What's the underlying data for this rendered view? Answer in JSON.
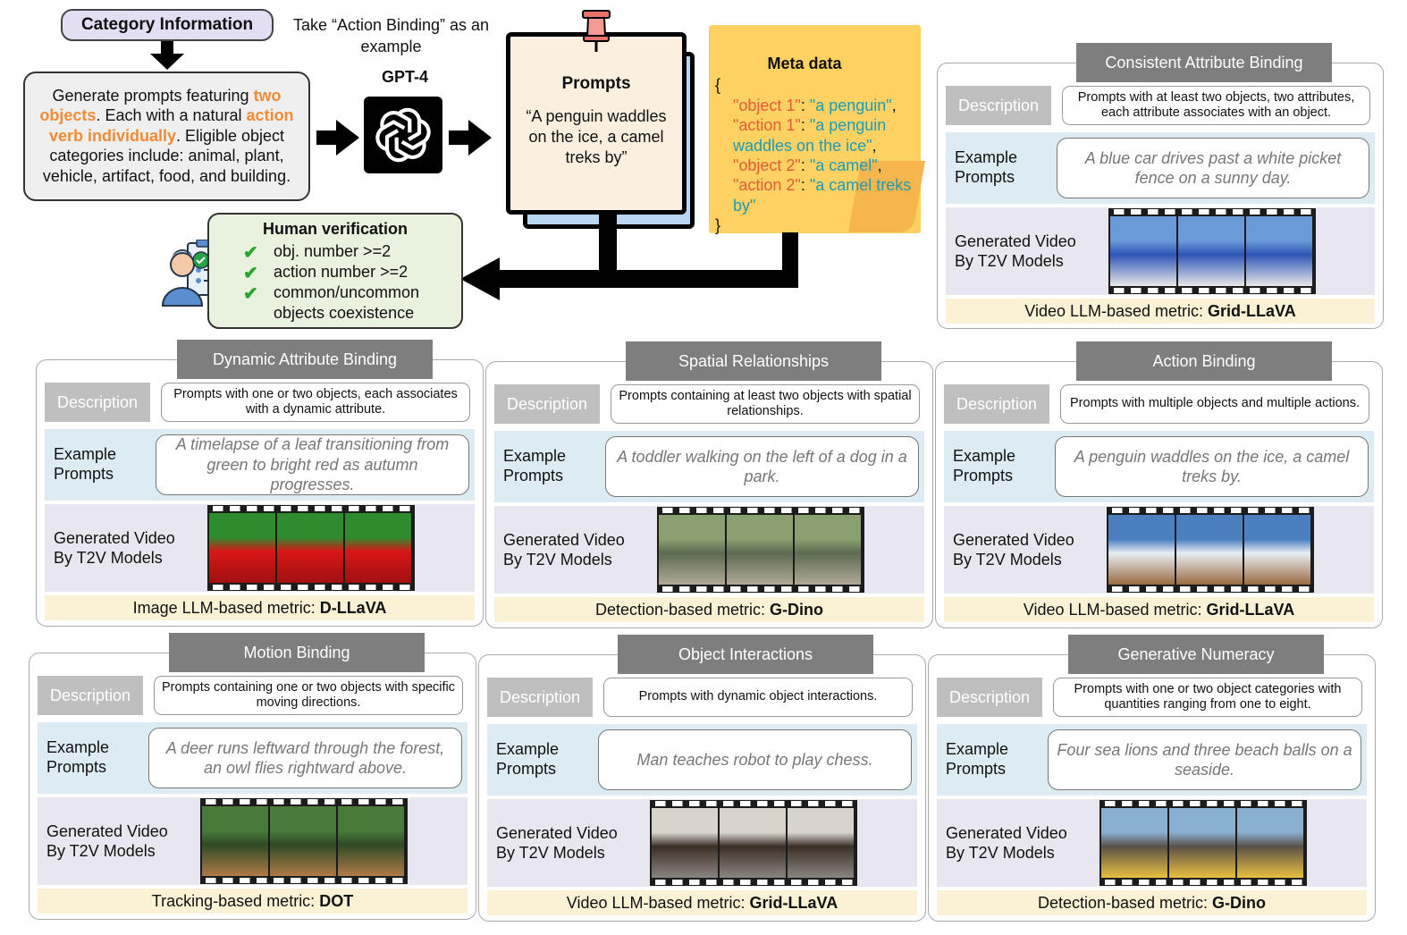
{
  "top": {
    "category_title": "Category Information",
    "take_example": "Take “Action Binding” as an example",
    "generate": {
      "t1": "Generate prompts featuring ",
      "h1": "two objects",
      "t2": ". Each with a natural ",
      "h2": "action verb individually",
      "t3": ". Eligible object categories include: animal, plant, vehicle, artifact, food, and building."
    },
    "gpt_label": "GPT-4",
    "prompts_title": "Prompts",
    "prompts_text": "“A penguin waddles on the ice, a camel treks by”",
    "meta_title": "Meta data",
    "meta": {
      "open": "{",
      "close": "}",
      "k1": "\"object 1\"",
      "v1": "\"a penguin\"",
      "k2": "\"action 1\"",
      "v2": "\"a penguin waddles on the ice\"",
      "k3": "\"object 2\"",
      "v3": "\"a camel\"",
      "k4": "\"action 2\"",
      "v4": "\"a camel treks by\""
    },
    "human_title": "Human verification",
    "human_items": [
      "obj. number >=2",
      "action number >=2",
      "common/uncommon objects coexistence"
    ]
  },
  "labels": {
    "description": "Description",
    "example": "Example Prompts",
    "generated": "Generated Video By T2V Models"
  },
  "panels": [
    {
      "title": "Consistent Attribute Binding",
      "desc": "Prompts with at least two objects, two attributes, each attribute associates with an object.",
      "example": "A blue car drives past a white picket fence on a sunny day.",
      "metric_prefix": "Video LLM-based metric: ",
      "metric_name": "Grid-LLaVA",
      "video_colors": [
        "#6a9ad8",
        "#2f55b8",
        "#e8e8e8"
      ]
    },
    {
      "title": "Dynamic Attribute Binding",
      "desc": "Prompts with one or two objects, each associates with a dynamic attribute.",
      "example": "A timelapse of a leaf transitioning from green to bright red as autumn progresses.",
      "metric_prefix": "Image LLM-based metric: ",
      "metric_name": "D-LLaVA",
      "video_colors": [
        "#2e8b2e",
        "#d81616",
        "#a01010"
      ]
    },
    {
      "title": "Spatial Relationships",
      "desc": "Prompts containing at least two objects with spatial relationships.",
      "example": "A toddler walking on the left of a dog in a park.",
      "metric_prefix": "Detection-based metric: ",
      "metric_name": "G-Dino",
      "video_colors": [
        "#8aa070",
        "#5c6a50",
        "#b0a898"
      ]
    },
    {
      "title": "Action Binding",
      "desc": "Prompts with multiple objects and multiple actions.",
      "example": "A penguin waddles on the ice, a camel treks by.",
      "metric_prefix": "Video LLM-based metric: ",
      "metric_name": "Grid-LLaVA",
      "video_colors": [
        "#4a7fc0",
        "#e8eef4",
        "#9a6a40"
      ]
    },
    {
      "title": "Motion Binding",
      "desc": "Prompts containing one or two objects with specific moving directions.",
      "example": "A deer runs leftward through the forest, an owl flies rightward above.",
      "metric_prefix": "Tracking-based metric: ",
      "metric_name": "DOT",
      "video_colors": [
        "#4a7a3a",
        "#2e4a24",
        "#b07a4a"
      ]
    },
    {
      "title": "Object Interactions",
      "desc": "Prompts with dynamic object interactions.",
      "example": "Man teaches robot to play chess.",
      "metric_prefix": "Video LLM-based metric: ",
      "metric_name": "Grid-LLaVA",
      "video_colors": [
        "#d8d4cc",
        "#3a3028",
        "#8a8480"
      ]
    },
    {
      "title": "Generative Numeracy",
      "desc": "Prompts with one or two object categories with quantities ranging from one to eight.",
      "example": "Four sea lions and three beach balls on a seaside.",
      "metric_prefix": "Detection-based metric: ",
      "metric_name": "G-Dino",
      "video_colors": [
        "#8ab0d0",
        "#5a5048",
        "#e8c040"
      ]
    }
  ]
}
